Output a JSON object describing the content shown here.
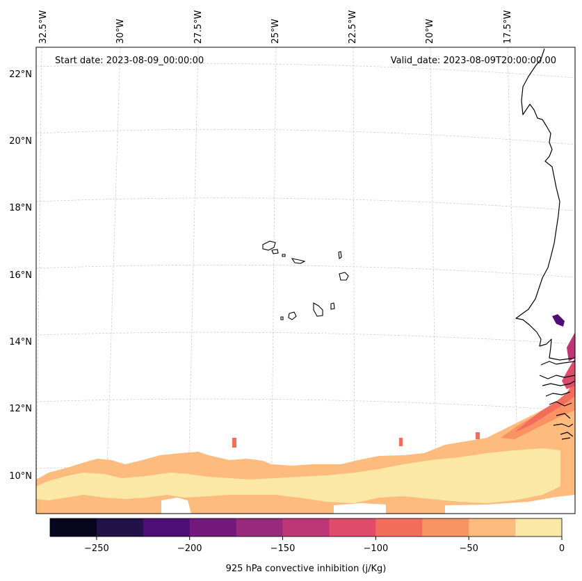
{
  "map": {
    "start_date": "Start date: 2023-08-09_00:00:00",
    "valid_date": "Valid_date: 2023-08-09T20:00:00.00",
    "lon_labels": [
      "32.5°W",
      "30°W",
      "27.5°W",
      "25°W",
      "22.5°W",
      "20°W",
      "17.5°W"
    ],
    "lat_labels": [
      "22°N",
      "20°N",
      "18°N",
      "16°N",
      "14°N",
      "12°N",
      "10°N"
    ],
    "features": [
      "Cape Verde islands",
      "West African coastline"
    ]
  },
  "colorbar": {
    "label": "925 hPa convective inhibition (j/Kg)",
    "ticks": [
      "−250",
      "−200",
      "−150",
      "−100",
      "−50",
      "0"
    ],
    "levels": [
      -275,
      -250,
      -225,
      -200,
      -175,
      -150,
      -125,
      -100,
      -75,
      -50,
      -25,
      0
    ],
    "colors": [
      "#08061e",
      "#23124a",
      "#4d0f76",
      "#741a7d",
      "#982a7b",
      "#bd3777",
      "#df4b6b",
      "#f26d5c",
      "#fa9364",
      "#fdbb7e",
      "#fbe7a6"
    ]
  }
}
